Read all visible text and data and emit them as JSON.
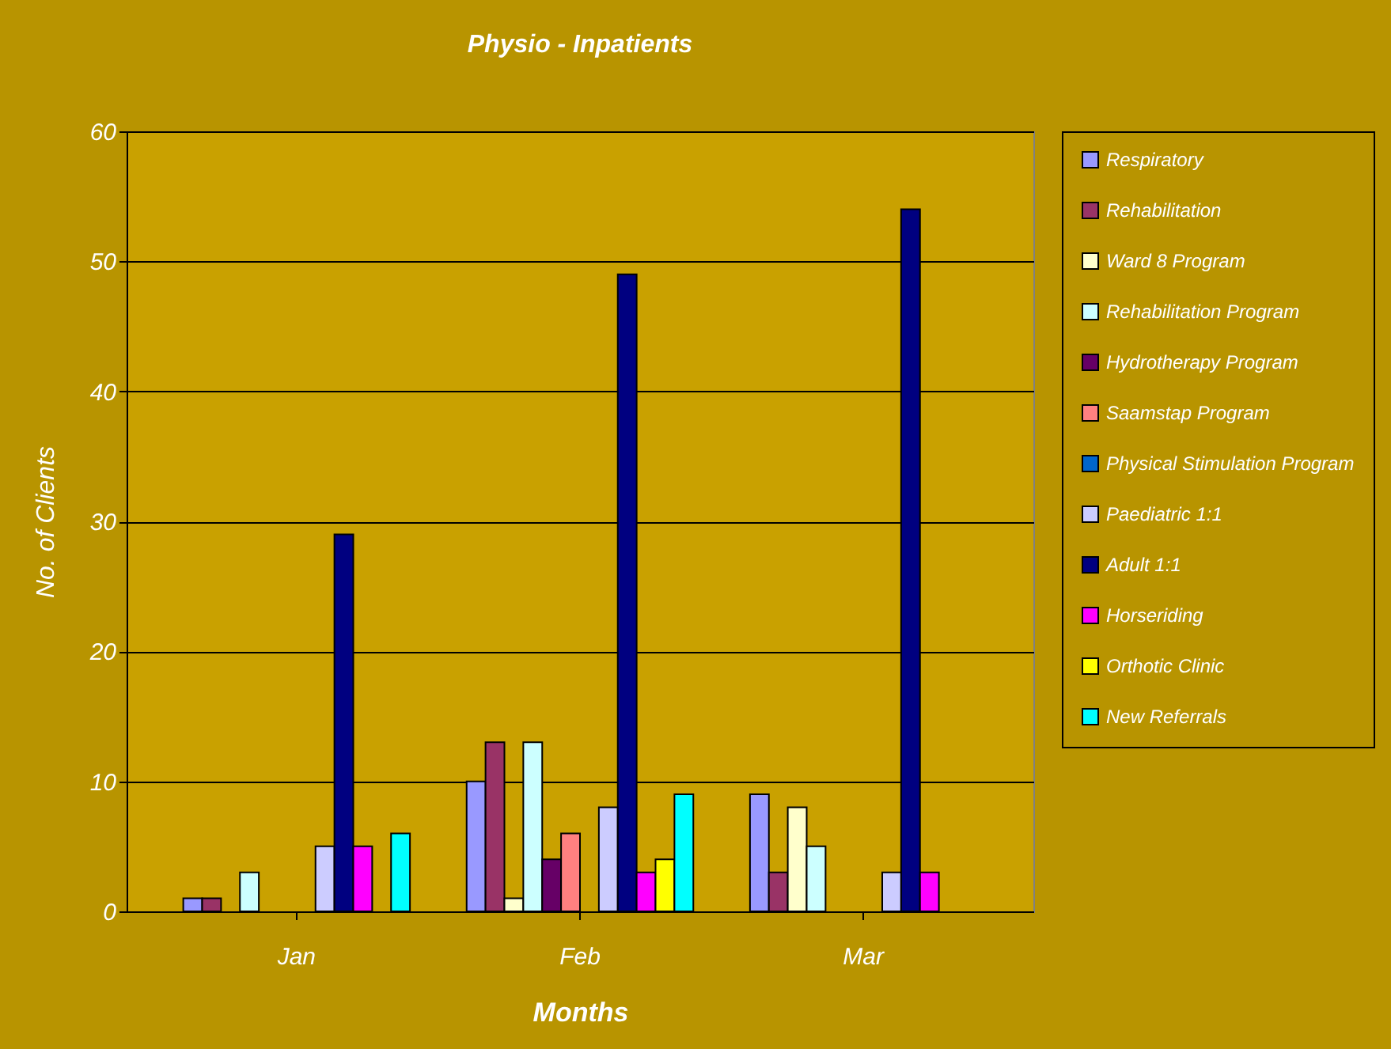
{
  "chart_data": {
    "type": "bar",
    "title": "Physio - Inpatients",
    "xlabel": "Months",
    "ylabel": "No. of Clients",
    "categories": [
      "Jan",
      "Feb",
      "Mar"
    ],
    "series": [
      {
        "name": "Respiratory",
        "color": "#9999ff",
        "values": [
          1,
          10,
          9
        ]
      },
      {
        "name": "Rehabilitation",
        "color": "#993366",
        "values": [
          1,
          13,
          3
        ]
      },
      {
        "name": "Ward 8 Program",
        "color": "#ffffcc",
        "values": [
          null,
          1,
          8
        ]
      },
      {
        "name": "Rehabilitation Program",
        "color": "#ccffff",
        "values": [
          3,
          13,
          5
        ]
      },
      {
        "name": "Hydrotherapy Program",
        "color": "#660066",
        "values": [
          null,
          4,
          null
        ]
      },
      {
        "name": "Saamstap Program",
        "color": "#ff8080",
        "values": [
          null,
          6,
          null
        ]
      },
      {
        "name": "Physical Stimulation Program",
        "color": "#0066cc",
        "values": [
          null,
          null,
          null
        ]
      },
      {
        "name": "Paediatric 1:1",
        "color": "#ccccff",
        "values": [
          5,
          8,
          3
        ]
      },
      {
        "name": "Adult 1:1",
        "color": "#000080",
        "values": [
          29,
          49,
          54
        ]
      },
      {
        "name": "Horseriding",
        "color": "#ff00ff",
        "values": [
          5,
          3,
          3
        ]
      },
      {
        "name": "Orthotic Clinic",
        "color": "#ffff00",
        "values": [
          null,
          4,
          null
        ]
      },
      {
        "name": "New Referrals",
        "color": "#00ffff",
        "values": [
          6,
          9,
          null
        ]
      }
    ],
    "ylim": [
      0,
      60
    ],
    "yticks": [
      0,
      10,
      20,
      30,
      40,
      50,
      60
    ],
    "grid": "y",
    "legend": "right"
  }
}
